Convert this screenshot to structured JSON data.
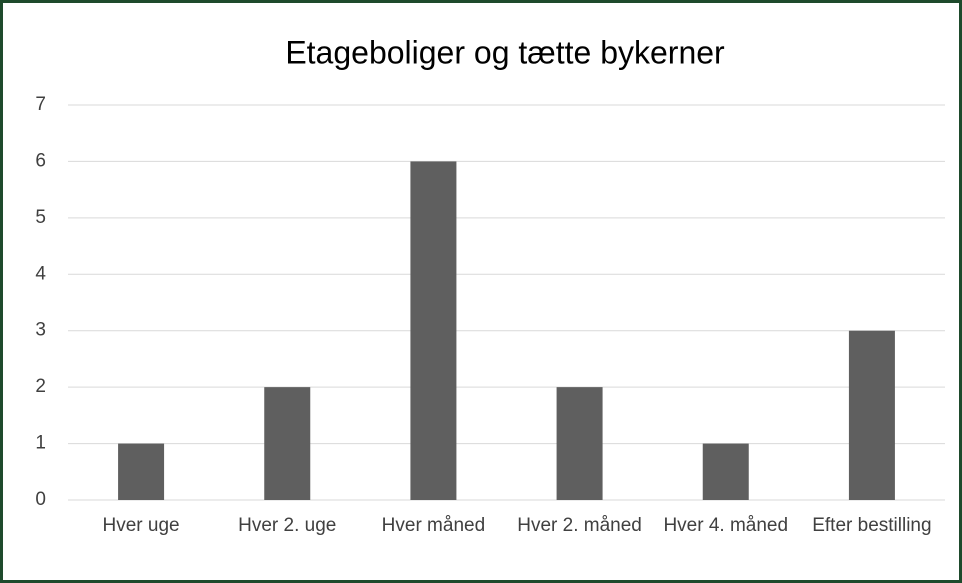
{
  "chart_data": {
    "type": "bar",
    "title": "Etageboliger og tætte bykerner",
    "categories": [
      "Hver uge",
      "Hver 2. uge",
      "Hver måned",
      "Hver 2. måned",
      "Hver 4. måned",
      "Efter bestilling"
    ],
    "values": [
      1,
      2,
      6,
      2,
      1,
      3
    ],
    "color": "#5f5f5f",
    "ylim": [
      0,
      7
    ],
    "yticks": [
      0,
      1,
      2,
      3,
      4,
      5,
      6,
      7
    ],
    "grid": true
  }
}
